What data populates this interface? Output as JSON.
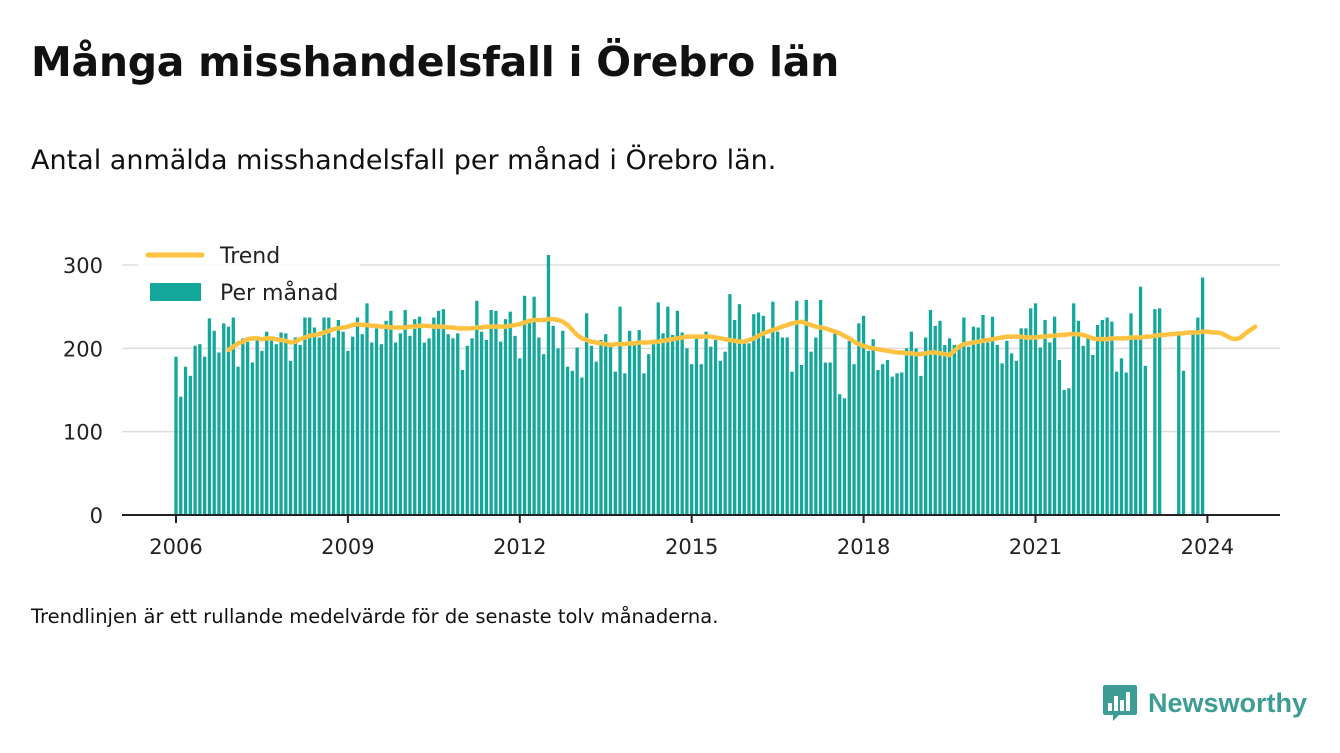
{
  "title": "Många misshandelsfall i Örebro län",
  "subtitle": "Antal anmälda misshandelsfall per månad i Örebro län.",
  "footnote": "Trendlinjen är ett rullande medelvärde för de senaste tolv månaderna.",
  "brand": {
    "name": "Newsworthy",
    "icon": "newsworthy-logo-icon"
  },
  "colors": {
    "bars": "#13a89b",
    "trend": "#ffc240",
    "grid": "#dddddd",
    "axis": "#222222",
    "brand": "#3d9c93"
  },
  "chart_data": {
    "type": "bar",
    "x_start": "2006-01",
    "x_label_ticks": [
      "2006",
      "2009",
      "2012",
      "2015",
      "2018",
      "2021",
      "2024"
    ],
    "y_ticks": [
      0,
      100,
      200,
      300
    ],
    "ylim": [
      0,
      310
    ],
    "grid": "horizontal",
    "legend_position": "top-left",
    "series": [
      {
        "name": "Per månad",
        "type": "bar",
        "values": [
          190,
          142,
          178,
          167,
          203,
          205,
          190,
          236,
          221,
          195,
          230,
          226,
          237,
          178,
          212,
          208,
          183,
          213,
          197,
          220,
          214,
          205,
          219,
          218,
          185,
          213,
          204,
          237,
          237,
          225,
          213,
          237,
          237,
          213,
          234,
          220,
          197,
          214,
          237,
          217,
          254,
          207,
          224,
          205,
          233,
          245,
          207,
          218,
          246,
          215,
          235,
          238,
          207,
          212,
          237,
          245,
          247,
          217,
          212,
          218,
          174,
          203,
          212,
          257,
          220,
          210,
          246,
          245,
          208,
          235,
          244,
          215,
          188,
          263,
          233,
          262,
          213,
          193,
          312,
          227,
          200,
          221,
          178,
          173,
          201,
          165,
          242,
          203,
          184,
          210,
          217,
          206,
          172,
          250,
          170,
          221,
          205,
          222,
          170,
          193,
          205,
          255,
          218,
          250,
          216,
          245,
          219,
          200,
          181,
          216,
          181,
          220,
          202,
          210,
          185,
          196,
          265,
          234,
          253,
          210,
          206,
          241,
          243,
          239,
          212,
          256,
          220,
          213,
          213,
          172,
          257,
          180,
          258,
          196,
          213,
          258,
          183,
          183,
          219,
          145,
          140,
          209,
          181,
          230,
          239,
          197,
          211,
          174,
          181,
          186,
          166,
          170,
          171,
          200,
          220,
          200,
          167,
          213,
          246,
          227,
          233,
          204,
          212,
          204,
          204,
          237,
          202,
          226,
          225,
          240,
          207,
          238,
          204,
          182,
          209,
          194,
          185,
          224,
          224,
          248,
          254,
          201,
          234,
          207,
          238,
          186,
          150,
          152,
          254,
          233,
          203,
          216,
          192,
          228,
          234,
          237,
          232,
          172,
          188,
          171,
          242,
          214,
          274,
          179,
          null,
          247,
          248,
          null,
          null,
          null,
          219,
          173,
          null,
          220,
          237,
          285
        ]
      },
      {
        "name": "Trend",
        "type": "line",
        "start": "2006-12",
        "values": [
          198,
          202,
          206,
          208,
          211,
          212,
          212,
          211,
          212,
          212,
          211,
          210,
          209,
          207,
          208,
          211,
          213,
          215,
          216,
          217,
          219,
          221,
          223,
          224,
          225,
          226,
          228,
          229,
          228,
          228,
          227,
          227,
          226,
          226,
          225,
          225,
          225,
          225,
          226,
          226,
          227,
          227,
          227,
          226,
          226,
          226,
          225,
          225,
          224,
          224,
          224,
          224,
          225,
          225,
          226,
          226,
          226,
          226,
          226,
          227,
          228,
          229,
          231,
          233,
          234,
          234,
          234,
          235,
          235,
          234,
          232,
          228,
          222,
          216,
          212,
          210,
          208,
          207,
          206,
          205,
          204,
          205,
          205,
          205,
          206,
          206,
          207,
          207,
          207,
          208,
          208,
          209,
          210,
          211,
          212,
          213,
          214,
          214,
          214,
          214,
          214,
          214,
          213,
          212,
          211,
          210,
          209,
          208,
          208,
          210,
          212,
          215,
          218,
          220,
          222,
          224,
          226,
          228,
          230,
          231,
          232,
          230,
          228,
          226,
          225,
          224,
          222,
          220,
          218,
          215,
          212,
          208,
          205,
          203,
          201,
          200,
          199,
          198,
          197,
          196,
          195,
          195,
          194,
          194,
          193,
          193,
          194,
          195,
          195,
          194,
          193,
          192,
          197,
          202,
          205,
          206,
          207,
          208,
          209,
          210,
          211,
          212,
          213,
          214,
          214,
          214,
          214,
          213,
          213,
          213,
          214,
          214,
          215,
          215,
          216,
          216,
          217,
          217,
          217,
          216,
          214,
          212,
          211,
          211,
          211,
          212,
          212,
          212,
          212,
          213,
          213,
          213,
          214,
          214,
          215,
          216,
          216,
          217,
          217,
          218,
          218,
          219,
          219,
          219,
          220,
          220,
          219,
          219,
          218,
          215,
          212,
          211,
          213,
          218,
          222,
          226
        ]
      }
    ]
  }
}
